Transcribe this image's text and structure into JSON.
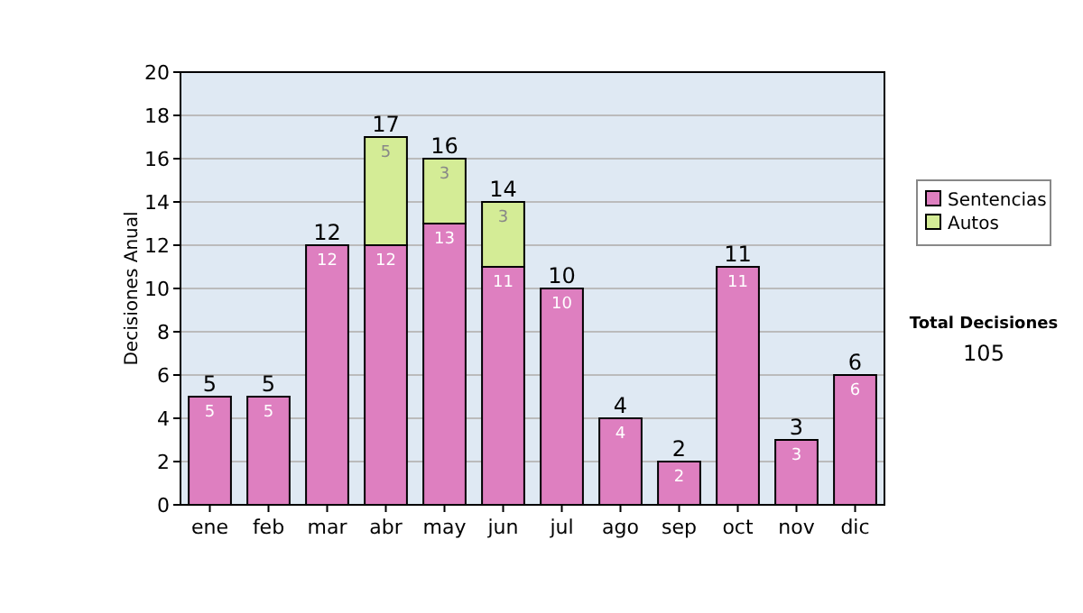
{
  "chart_data": {
    "type": "bar",
    "ylabel": "Decisiones Anual",
    "stacked": true,
    "categories": [
      "ene",
      "feb",
      "mar",
      "abr",
      "may",
      "jun",
      "jul",
      "ago",
      "sep",
      "oct",
      "nov",
      "dic"
    ],
    "series": [
      {
        "name": "Sentencias",
        "color": "#de7fc0",
        "values": [
          5,
          5,
          12,
          12,
          13,
          11,
          10,
          4,
          2,
          11,
          3,
          6
        ]
      },
      {
        "name": "Autos",
        "color": "#d4ec96",
        "values": [
          null,
          null,
          null,
          5,
          3,
          3,
          null,
          null,
          null,
          null,
          null,
          null
        ]
      }
    ],
    "totals": [
      "5",
      "5",
      "12",
      "17",
      "16",
      "14",
      "10",
      "4",
      "2",
      "11",
      "3",
      "6"
    ],
    "data_labels": true,
    "ylim": [
      0,
      20
    ],
    "yticks": [
      0,
      2,
      4,
      6,
      8,
      10,
      12,
      14,
      16,
      18,
      20
    ],
    "grid": "y",
    "legend": "right",
    "annotations": [
      "Total Decisiones",
      "105"
    ]
  }
}
